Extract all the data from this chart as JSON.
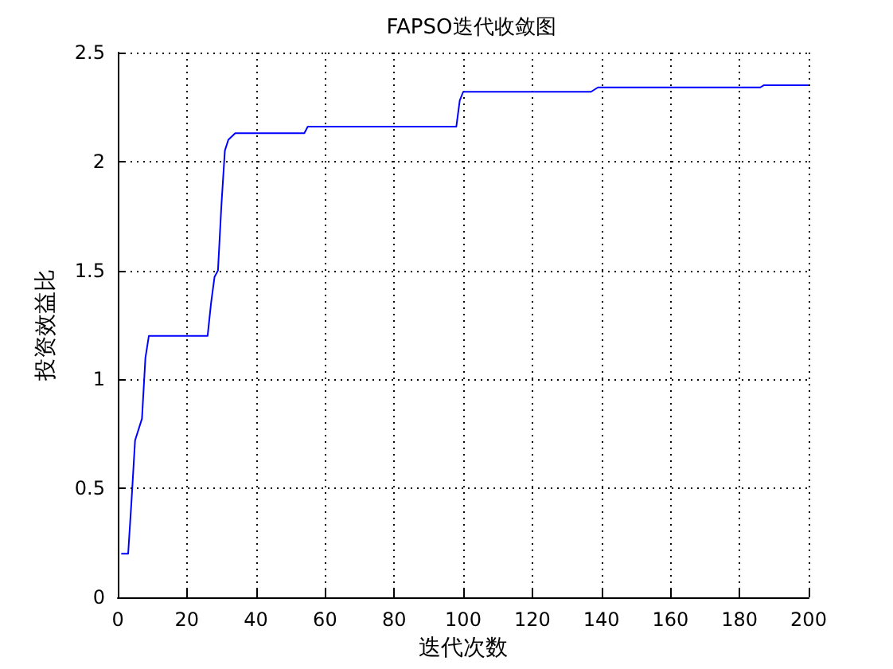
{
  "chart_data": {
    "type": "line",
    "title": "FAPSO迭代收敛图",
    "xlabel": "迭代次数",
    "ylabel": "投资效益比",
    "x": [
      1,
      3,
      4,
      5,
      7,
      8,
      9,
      26,
      27,
      28,
      29,
      30,
      31,
      32,
      34,
      54,
      55,
      98,
      99,
      100,
      137,
      139,
      186,
      187,
      200
    ],
    "series": [
      {
        "color": "#0000ff",
        "values": [
          0.2,
          0.2,
          0.45,
          0.72,
          0.82,
          1.1,
          1.2,
          1.2,
          1.35,
          1.47,
          1.5,
          1.8,
          2.05,
          2.1,
          2.13,
          2.13,
          2.16,
          2.16,
          2.28,
          2.32,
          2.32,
          2.34,
          2.34,
          2.35,
          2.35
        ]
      }
    ],
    "xlim": [
      0,
      200
    ],
    "xticks": [
      0,
      20,
      40,
      60,
      80,
      100,
      120,
      140,
      160,
      180,
      200
    ],
    "ylim": [
      0,
      2.5
    ],
    "yticks": [
      0,
      0.5,
      1,
      1.5,
      2,
      2.5
    ],
    "grid": true,
    "marker": "none",
    "line_style": "solid"
  }
}
